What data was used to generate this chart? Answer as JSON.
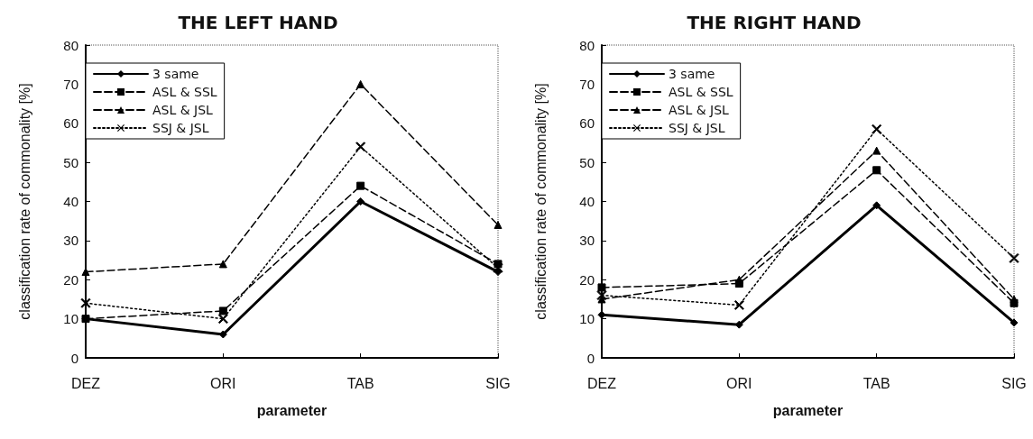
{
  "chart_data": [
    {
      "type": "line",
      "title": "THE LEFT HAND",
      "xlabel": "parameter",
      "ylabel": "classification rate of commonality [%]",
      "categories": [
        "DEZ",
        "ORI",
        "TAB",
        "SIG"
      ],
      "ylim": [
        0,
        80
      ],
      "yticks": [
        0,
        10,
        20,
        30,
        40,
        50,
        60,
        70,
        80
      ],
      "grid": false,
      "legend": "top left",
      "series": [
        {
          "name": "3 same",
          "color": "#000000",
          "marker": "diamond",
          "line_style": "solid",
          "values": [
            10,
            6,
            40,
            22
          ]
        },
        {
          "name": "ASL & SSL",
          "color": "#000000",
          "marker": "square",
          "line_style": "dashed",
          "values": [
            10,
            12,
            44,
            24
          ]
        },
        {
          "name": "ASL & JSL",
          "color": "#000000",
          "marker": "triangle",
          "line_style": "dashed",
          "values": [
            22,
            24,
            70,
            34
          ]
        },
        {
          "name": "SSJ & JSL",
          "color": "#000000",
          "marker": "cross",
          "line_style": "dotted",
          "values": [
            14,
            10,
            54,
            23
          ]
        }
      ]
    },
    {
      "type": "line",
      "title": "THE RIGHT HAND",
      "xlabel": "parameter",
      "ylabel": "classification rate of commonality [%]",
      "categories": [
        "DEZ",
        "ORI",
        "TAB",
        "SIG"
      ],
      "ylim": [
        0,
        80
      ],
      "yticks": [
        0,
        10,
        20,
        30,
        40,
        50,
        60,
        70,
        80
      ],
      "grid": false,
      "legend": "top left",
      "series": [
        {
          "name": "3 same",
          "color": "#000000",
          "marker": "diamond",
          "line_style": "solid",
          "values": [
            11,
            8.5,
            39,
            9
          ]
        },
        {
          "name": "ASL & SSL",
          "color": "#000000",
          "marker": "square",
          "line_style": "dashed",
          "values": [
            18,
            19,
            48,
            14
          ]
        },
        {
          "name": "ASL & JSL",
          "color": "#000000",
          "marker": "triangle",
          "line_style": "dashed",
          "values": [
            15,
            20,
            53,
            15
          ]
        },
        {
          "name": "SSJ & JSL",
          "color": "#000000",
          "marker": "cross",
          "line_style": "dotted",
          "values": [
            16,
            13.5,
            58.5,
            25.5
          ]
        }
      ]
    }
  ]
}
